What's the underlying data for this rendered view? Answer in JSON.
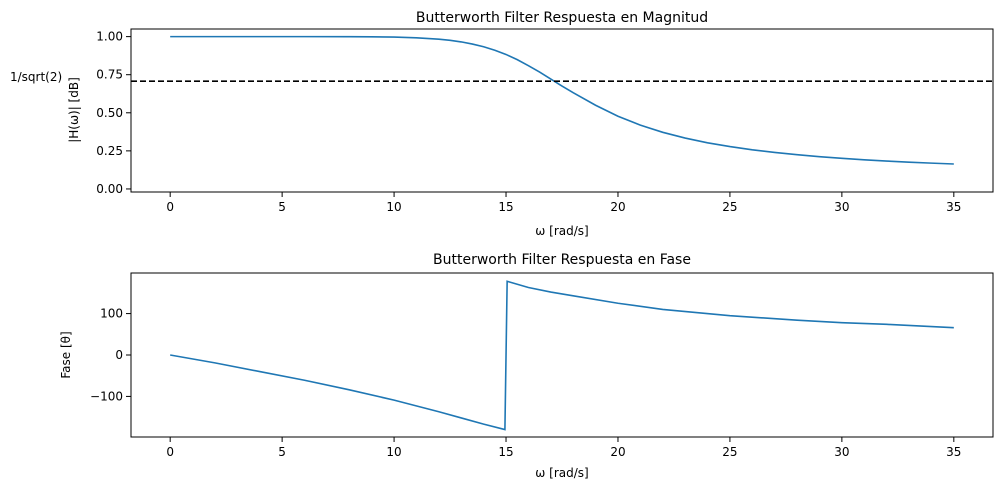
{
  "chart_data": [
    {
      "type": "line",
      "title": "Butterworth Filter Respuesta en Magnitud",
      "xlabel": "ω [rad/s]",
      "ylabel": "|H(ω)| [dB]",
      "xlim": [
        -1.75,
        36.75
      ],
      "ylim": [
        -0.02,
        1.05
      ],
      "xticks": [
        0,
        5,
        10,
        15,
        20,
        25,
        30,
        35
      ],
      "xtick_labels": [
        "0",
        "5",
        "10",
        "15",
        "20",
        "25",
        "30",
        "35"
      ],
      "yticks": [
        0,
        0.25,
        0.5,
        0.75,
        1.0
      ],
      "ytick_labels": [
        "0.00",
        "0.25",
        "0.50",
        "0.75",
        "1.00"
      ],
      "grid": false,
      "series": [
        {
          "color": "#1f77b4",
          "x": [
            0,
            2,
            4,
            6,
            8,
            9,
            10,
            11,
            12,
            12.5,
            13,
            13.5,
            14,
            14.5,
            15,
            15.5,
            16,
            16.5,
            17,
            17.5,
            18,
            19,
            20,
            21,
            22,
            23,
            24,
            25,
            26,
            27,
            28,
            29,
            30,
            31,
            32,
            33,
            34,
            35
          ],
          "y": [
            1.0,
            1.0,
            1.0,
            1.0,
            0.9995,
            0.9986,
            0.9968,
            0.9924,
            0.9831,
            0.9756,
            0.9653,
            0.9513,
            0.9333,
            0.9103,
            0.8829,
            0.8488,
            0.8095,
            0.7671,
            0.7211,
            0.6756,
            0.6316,
            0.5495,
            0.4775,
            0.4188,
            0.3718,
            0.334,
            0.3031,
            0.2781,
            0.2571,
            0.2394,
            0.2247,
            0.2119,
            0.201,
            0.1915,
            0.1832,
            0.1759,
            0.1696,
            0.1639
          ]
        }
      ],
      "reference_line": {
        "orientation": "horizontal",
        "y": 0.7071,
        "label": "1/sqrt(2)",
        "color": "#000000",
        "style": "dashed"
      }
    },
    {
      "type": "line",
      "title": "Butterworth Filter Respuesta en Fase",
      "xlabel": "ω [rad/s]",
      "ylabel": "Fase [θ]",
      "xlim": [
        -1.75,
        36.75
      ],
      "ylim": [
        -198,
        198
      ],
      "xticks": [
        0,
        5,
        10,
        15,
        20,
        25,
        30,
        35
      ],
      "xtick_labels": [
        "0",
        "5",
        "10",
        "15",
        "20",
        "25",
        "30",
        "35"
      ],
      "yticks": [
        -100,
        0,
        100
      ],
      "ytick_labels": [
        "−100",
        "0",
        "100"
      ],
      "grid": false,
      "series": [
        {
          "color": "#1f77b4",
          "x": [
            0,
            2,
            4,
            6,
            8,
            10,
            12,
            13,
            14,
            14.95,
            15.05,
            16,
            17,
            18,
            20,
            22,
            25,
            28,
            30,
            32,
            35
          ],
          "y": [
            0,
            -19,
            -40,
            -61,
            -84,
            -109,
            -137,
            -152,
            -167,
            -180,
            178,
            163,
            152,
            143,
            125,
            110,
            95,
            84,
            78,
            74,
            66
          ]
        }
      ]
    }
  ]
}
